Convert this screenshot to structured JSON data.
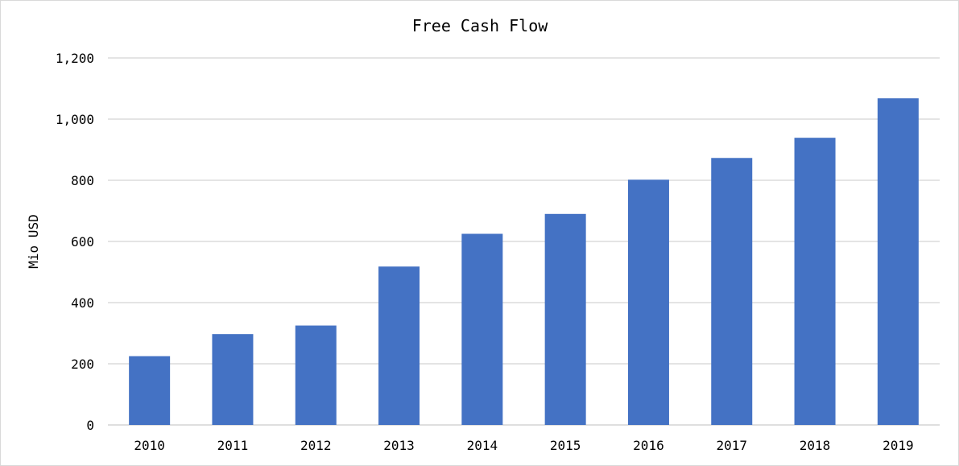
{
  "chart_data": {
    "type": "bar",
    "title": "Free Cash Flow",
    "xlabel": "",
    "ylabel": "Mio USD",
    "categories": [
      "2010",
      "2011",
      "2012",
      "2013",
      "2014",
      "2015",
      "2016",
      "2017",
      "2018",
      "2019"
    ],
    "values": [
      225,
      297,
      325,
      518,
      625,
      690,
      802,
      873,
      939,
      1068
    ],
    "ylim": [
      0,
      1200
    ],
    "yticks": [
      0,
      200,
      400,
      600,
      800,
      1000,
      1200
    ],
    "ytick_labels": [
      "0",
      "200",
      "400",
      "600",
      "800",
      "1,000",
      "1,200"
    ],
    "grid": true,
    "legend": "none",
    "bar_color": "#4472c4"
  }
}
